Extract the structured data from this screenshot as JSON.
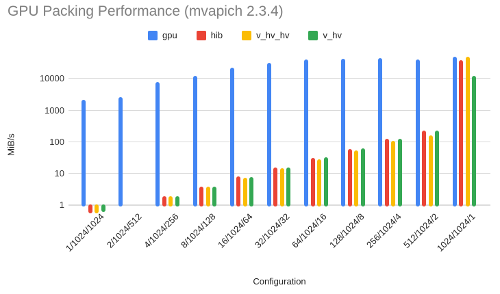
{
  "chart_data": {
    "type": "bar",
    "title": "GPU Packing Performance (mvapich 2.3.4)",
    "xlabel": "Configuration",
    "ylabel": "MiB/s",
    "y_scale": "log",
    "y_ticks": [
      1,
      10,
      100,
      1000,
      10000
    ],
    "ylim": [
      0.4,
      60000
    ],
    "grid": true,
    "legend_position": "top",
    "categories": [
      "1/1024/1024",
      "2/1024/512",
      "4/1024/256",
      "8/1024/128",
      "16/1024/64",
      "32/1024/32",
      "64/1024/16",
      "128/1024/8",
      "256/1024/4",
      "512/1024/2",
      "1024/1024/1"
    ],
    "series": [
      {
        "name": "gpu",
        "color": "#4285F4",
        "values": [
          2100,
          2600,
          7700,
          12000,
          22000,
          32000,
          40000,
          42000,
          45000,
          41000,
          49000
        ]
      },
      {
        "name": "hib",
        "color": "#EA4335",
        "values": [
          0.55,
          null,
          1.9,
          3.8,
          7.8,
          15,
          30,
          59,
          125,
          230,
          39000
        ]
      },
      {
        "name": "v_hv_hv",
        "color": "#FBBC04",
        "values": [
          0.55,
          null,
          1.9,
          3.7,
          7.1,
          14.5,
          27,
          52,
          107,
          160,
          50000
        ]
      },
      {
        "name": "v_hv",
        "color": "#34A853",
        "values": [
          0.6,
          null,
          1.9,
          3.8,
          7.5,
          15.5,
          32,
          62,
          122,
          220,
          12400
        ]
      }
    ]
  },
  "colors": {
    "background": "#ffffff",
    "title_text": "#7f7f7f",
    "axis_text": "#1f1f1f",
    "gridline": "#d9d9d9"
  }
}
